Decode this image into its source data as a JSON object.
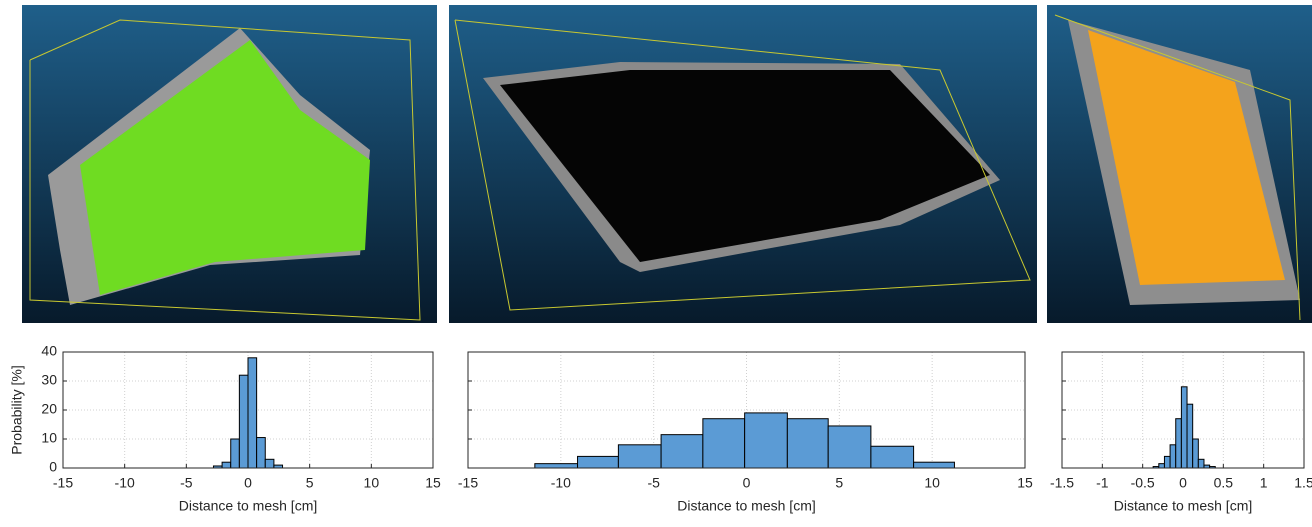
{
  "chart_data": [
    {
      "type": "histogram",
      "ylabel": "Probability [%]",
      "xlabel": "Distance to mesh [cm]",
      "bins": [
        -2.8,
        -2.1,
        -1.4,
        -0.7,
        0,
        0.7,
        1.4,
        2.1,
        2.8
      ],
      "values": [
        0.7,
        2,
        10,
        32,
        38,
        10.5,
        3,
        1
      ],
      "color": "#5b9bd5",
      "xlim": [
        -15,
        15
      ],
      "xticks": [
        -15,
        -10,
        -5,
        0,
        5,
        10,
        15
      ],
      "ylim": [
        0,
        40
      ],
      "yticks": [
        0,
        10,
        20,
        30,
        40
      ],
      "grid": true,
      "show_ytick_labels": true
    },
    {
      "type": "histogram",
      "xlabel": "Distance to mesh [cm]",
      "bins": [
        -11.4,
        -9.1,
        -6.9,
        -4.6,
        -2.35,
        -0.1,
        2.2,
        4.4,
        6.7,
        9,
        11.2
      ],
      "values": [
        1.5,
        4,
        8,
        11.5,
        17,
        19,
        17,
        14.5,
        7.5,
        2
      ],
      "color": "#5b9bd5",
      "xlim": [
        -15,
        15
      ],
      "xticks": [
        -15,
        -10,
        -5,
        0,
        5,
        10,
        15
      ],
      "ylim": [
        0,
        40
      ],
      "yticks": [
        0,
        10,
        20,
        30,
        40
      ],
      "grid": true,
      "show_ytick_labels": false
    },
    {
      "type": "histogram",
      "xlabel": "Distance to mesh [cm]",
      "bins": [
        -0.37,
        -0.3,
        -0.23,
        -0.16,
        -0.09,
        -0.02,
        0.05,
        0.12,
        0.19,
        0.26,
        0.33,
        0.4
      ],
      "values": [
        0.5,
        1.5,
        4,
        8,
        17,
        28,
        22,
        10,
        3,
        1,
        0.5
      ],
      "color": "#5b9bd5",
      "xlim": [
        -1.5,
        1.5
      ],
      "xticks": [
        -1.5,
        -1,
        -0.5,
        0,
        0.5,
        1,
        1.5
      ],
      "ylim": [
        0,
        40
      ],
      "yticks": [
        0,
        10,
        20,
        30,
        40
      ],
      "grid": true,
      "show_ytick_labels": false
    }
  ]
}
